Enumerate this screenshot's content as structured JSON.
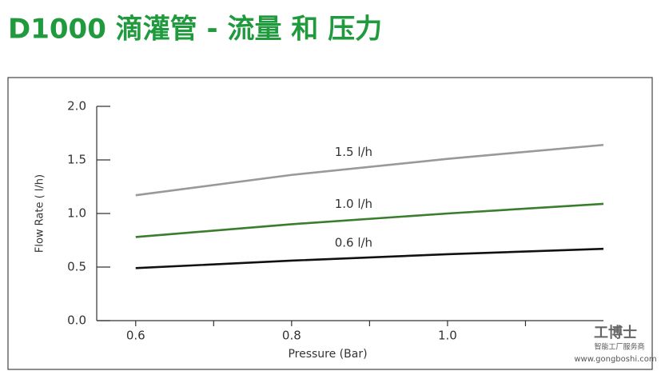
{
  "chart_data": {
    "type": "line",
    "title": "D1000 滴灌管 - 流量 和 压力",
    "x_label": "Pressure (Bar)",
    "y_label": "Flow Rate ( l/h)",
    "x": [
      0.6,
      0.8,
      1.0,
      1.2
    ],
    "series": [
      {
        "name": "1.5 l/h",
        "color": "#999999",
        "values": [
          1.17,
          1.36,
          1.51,
          1.64
        ]
      },
      {
        "name": "1.0 l/h",
        "color": "#3a7d2c",
        "values": [
          0.78,
          0.9,
          1.0,
          1.09
        ]
      },
      {
        "name": "0.6 l/h",
        "color": "#111111",
        "values": [
          0.49,
          0.56,
          0.62,
          0.67
        ]
      }
    ],
    "xlim": [
      0.55,
      1.2
    ],
    "xticks": [
      0.6,
      0.8,
      {
        "value": 1.0,
        "label": "1.0"
      }
    ],
    "xminor_ticks": [
      0.7,
      0.9,
      1.1
    ],
    "ylim": [
      0,
      2
    ],
    "yticks": [
      {
        "value": 0,
        "label": "0.0"
      },
      0.5,
      {
        "value": 1,
        "label": "1.0"
      },
      1.5,
      {
        "value": 2,
        "label": "2.0"
      }
    ],
    "grid": false
  },
  "watermark": {
    "brand": "工博士",
    "slogan": "智能工厂服务商",
    "url": "www.gongboshi.com"
  }
}
